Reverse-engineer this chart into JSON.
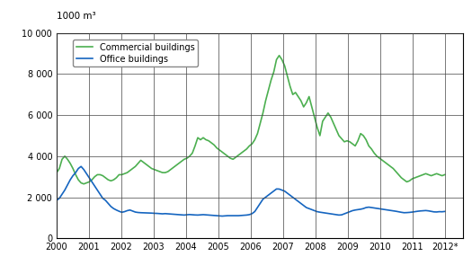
{
  "title_unit": "1000 m³",
  "commercial_color": "#4caf50",
  "office_color": "#1565c0",
  "background_color": "#ffffff",
  "ylim": [
    0,
    10000
  ],
  "yticks": [
    0,
    2000,
    4000,
    6000,
    8000,
    10000
  ],
  "ytick_labels": [
    "0",
    "2 000",
    "4 000",
    "6 000",
    "8 000",
    "10 000"
  ],
  "xtick_positions": [
    2000,
    2001,
    2002,
    2003,
    2004,
    2005,
    2006,
    2007,
    2008,
    2009,
    2010,
    2011,
    2012
  ],
  "xtick_labels": [
    "2000",
    "2001",
    "2002",
    "2003",
    "2004",
    "2005",
    "2006",
    "2007",
    "2008",
    "2009",
    "2010",
    "2011",
    "2012*"
  ],
  "legend_commercial": "Commercial buildings",
  "legend_office": "Office buildings",
  "commercial_data": [
    3200,
    3400,
    3850,
    4000,
    3850,
    3650,
    3400,
    3100,
    2850,
    2700,
    2650,
    2700,
    2750,
    2850,
    3000,
    3100,
    3100,
    3050,
    2950,
    2850,
    2800,
    2850,
    2950,
    3100,
    3100,
    3150,
    3200,
    3300,
    3400,
    3500,
    3650,
    3800,
    3700,
    3600,
    3500,
    3400,
    3350,
    3300,
    3250,
    3200,
    3200,
    3250,
    3350,
    3450,
    3550,
    3650,
    3750,
    3850,
    3900,
    4000,
    4150,
    4500,
    4900,
    4800,
    4900,
    4800,
    4750,
    4650,
    4550,
    4400,
    4300,
    4200,
    4100,
    4000,
    3900,
    3850,
    3950,
    4050,
    4150,
    4250,
    4350,
    4500,
    4600,
    4800,
    5100,
    5600,
    6100,
    6700,
    7200,
    7700,
    8100,
    8700,
    8900,
    8700,
    8400,
    7900,
    7400,
    7000,
    7100,
    6900,
    6700,
    6400,
    6600,
    6900,
    6400,
    5900,
    5400,
    5000,
    5700,
    5900,
    6100,
    5900,
    5600,
    5300,
    5000,
    4850,
    4700,
    4750,
    4700,
    4600,
    4500,
    4750,
    5100,
    5000,
    4800,
    4500,
    4350,
    4150,
    4000,
    3900,
    3800,
    3700,
    3600,
    3500,
    3400,
    3250,
    3100,
    2950,
    2850,
    2750,
    2800,
    2900,
    2950,
    3000,
    3050,
    3100,
    3150,
    3100,
    3050,
    3100,
    3150,
    3100,
    3050,
    3100
  ],
  "office_data": [
    1850,
    1950,
    2150,
    2350,
    2600,
    2850,
    3050,
    3200,
    3400,
    3500,
    3350,
    3150,
    2950,
    2750,
    2550,
    2350,
    2150,
    1950,
    1850,
    1700,
    1550,
    1450,
    1380,
    1320,
    1270,
    1300,
    1350,
    1380,
    1330,
    1280,
    1260,
    1250,
    1245,
    1240,
    1235,
    1230,
    1220,
    1215,
    1205,
    1195,
    1205,
    1195,
    1185,
    1175,
    1165,
    1155,
    1145,
    1135,
    1150,
    1160,
    1150,
    1140,
    1135,
    1145,
    1155,
    1145,
    1135,
    1125,
    1115,
    1105,
    1095,
    1085,
    1095,
    1105,
    1105,
    1105,
    1105,
    1105,
    1115,
    1125,
    1135,
    1155,
    1205,
    1305,
    1505,
    1705,
    1905,
    2005,
    2105,
    2205,
    2305,
    2405,
    2400,
    2350,
    2300,
    2200,
    2100,
    2000,
    1900,
    1800,
    1700,
    1600,
    1500,
    1450,
    1400,
    1350,
    1300,
    1275,
    1255,
    1235,
    1215,
    1195,
    1175,
    1155,
    1135,
    1145,
    1195,
    1250,
    1300,
    1350,
    1380,
    1400,
    1420,
    1450,
    1500,
    1520,
    1500,
    1480,
    1460,
    1440,
    1420,
    1400,
    1380,
    1360,
    1340,
    1320,
    1295,
    1270,
    1250,
    1255,
    1265,
    1280,
    1300,
    1320,
    1335,
    1345,
    1355,
    1340,
    1315,
    1290,
    1285,
    1300,
    1295,
    1310
  ]
}
